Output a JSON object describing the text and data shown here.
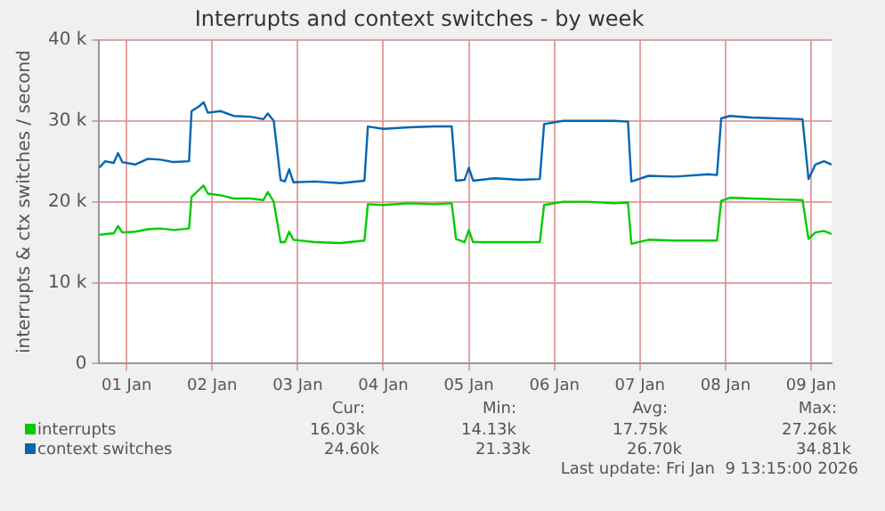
{
  "chart_data": {
    "type": "line",
    "title": "Interrupts and context switches - by week",
    "ylabel": "interrupts & ctx switches / second",
    "x": [
      "2025-12-31T23:49",
      "2026-01-01T01:30",
      "2026-01-01T03:54",
      "2026-01-01T05:06",
      "2026-01-01T06:18",
      "2026-01-01T09:54",
      "2026-01-01T13:30",
      "2026-01-01T17:06",
      "2026-01-01T20:42",
      "2026-01-02T01:01",
      "2026-01-02T01:44",
      "2026-01-02T03:54",
      "2026-01-02T05:06",
      "2026-01-02T06:18",
      "2026-01-02T09:54",
      "2026-01-02T13:30",
      "2026-01-02T18:18",
      "2026-01-02T21:54",
      "2026-01-02T23:06",
      "2026-01-03T00:47",
      "2026-01-03T02:42",
      "2026-01-03T03:54",
      "2026-01-03T05:06",
      "2026-01-03T06:18",
      "2026-01-03T12:18",
      "2026-01-03T19:30",
      "2026-01-04T02:13",
      "2026-01-04T03:11",
      "2026-01-04T07:30",
      "2026-01-04T14:42",
      "2026-01-04T21:54",
      "2026-01-05T02:42",
      "2026-01-05T03:54",
      "2026-01-05T06:18",
      "2026-01-05T07:30",
      "2026-01-05T08:42",
      "2026-01-05T14:42",
      "2026-01-05T21:54",
      "2026-01-06T03:25",
      "2026-01-06T04:37",
      "2026-01-06T09:54",
      "2026-01-06T17:06",
      "2026-01-07T00:18",
      "2026-01-07T04:08",
      "2026-01-07T05:06",
      "2026-01-07T09:54",
      "2026-01-07T17:06",
      "2026-01-08T02:42",
      "2026-01-08T05:06",
      "2026-01-08T06:18",
      "2026-01-08T08:42",
      "2026-01-08T14:42",
      "2026-01-08T21:54",
      "2026-01-09T05:06",
      "2026-01-09T06:47",
      "2026-01-09T08:42",
      "2026-01-09T11:06",
      "2026-01-09T13:15"
    ],
    "series": [
      {
        "name": "interrupts",
        "color": "#00cc00",
        "values": [
          15.9,
          16.0,
          16.1,
          17.0,
          16.2,
          16.3,
          16.6,
          16.7,
          16.5,
          16.7,
          20.6,
          21.5,
          22.0,
          21.0,
          20.8,
          20.4,
          20.4,
          20.2,
          21.2,
          20.0,
          15.0,
          15.0,
          16.3,
          15.3,
          15.0,
          14.9,
          15.2,
          19.7,
          19.6,
          19.8,
          19.7,
          19.8,
          15.4,
          15.0,
          16.5,
          15.0,
          15.0,
          15.0,
          15.0,
          19.6,
          20.0,
          20.0,
          19.8,
          19.9,
          14.8,
          15.3,
          15.2,
          15.2,
          15.2,
          20.1,
          20.5,
          20.4,
          20.3,
          20.2,
          15.4,
          16.2,
          16.4,
          16.0
        ]
      },
      {
        "name": "context switches",
        "color": "#0066b3",
        "values": [
          24.2,
          25.0,
          24.8,
          26.0,
          24.9,
          24.6,
          25.3,
          25.2,
          24.9,
          25.0,
          31.2,
          31.8,
          32.3,
          31.0,
          31.2,
          30.6,
          30.5,
          30.2,
          30.9,
          30.0,
          22.7,
          22.5,
          24.0,
          22.4,
          22.5,
          22.3,
          22.6,
          29.3,
          29.0,
          29.2,
          29.3,
          29.3,
          22.6,
          22.7,
          24.2,
          22.6,
          22.9,
          22.7,
          22.8,
          29.6,
          30.0,
          30.0,
          30.0,
          29.9,
          22.5,
          23.2,
          23.1,
          23.4,
          23.3,
          30.3,
          30.6,
          30.4,
          30.3,
          30.2,
          22.8,
          24.6,
          25.0,
          24.6
        ]
      }
    ],
    "xlim": [
      "2025-12-31T23:49",
      "2026-01-09T13:15"
    ],
    "xticks": [
      {
        "value": "2026-01-01T07:30",
        "label": "01 Jan"
      },
      {
        "value": "2026-01-02T07:30",
        "label": "02 Jan"
      },
      {
        "value": "2026-01-03T07:30",
        "label": "03 Jan"
      },
      {
        "value": "2026-01-04T07:30",
        "label": "04 Jan"
      },
      {
        "value": "2026-01-05T07:30",
        "label": "05 Jan"
      },
      {
        "value": "2026-01-06T07:30",
        "label": "06 Jan"
      },
      {
        "value": "2026-01-07T07:30",
        "label": "07 Jan"
      },
      {
        "value": "2026-01-08T07:30",
        "label": "08 Jan"
      },
      {
        "value": "2026-01-09T07:30",
        "label": "09 Jan"
      }
    ],
    "ylim": [
      0,
      40
    ],
    "yticks": [
      0,
      {
        "value": 10,
        "label": "10 k"
      },
      {
        "value": 20,
        "label": "20 k"
      },
      {
        "value": 30,
        "label": "30 k"
      },
      {
        "value": 40,
        "label": "40 k"
      }
    ],
    "grid": true,
    "legend": "bottom",
    "marker": "none",
    "line_style": "solid",
    "annotations": [
      "Cur:",
      "Min:",
      "Avg:",
      "Max:",
      "16.03k",
      "14.13k",
      "17.75k",
      "27.26k",
      "24.60k",
      "21.33k",
      "26.70k",
      "34.81k",
      "Last update: Fri Jan  9 13:15:00 2026"
    ]
  }
}
